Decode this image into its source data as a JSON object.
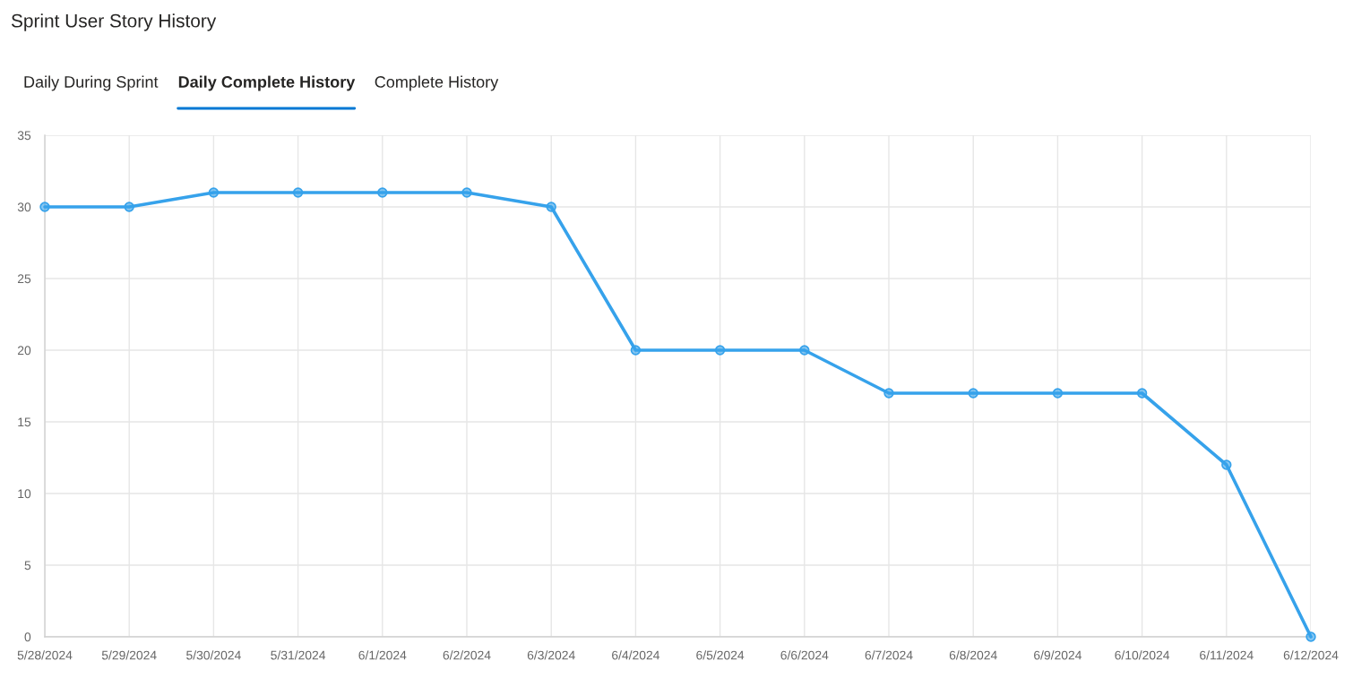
{
  "chart_data": {
    "type": "line",
    "title": "Sprint User Story History",
    "annotations": [
      "Daily During Sprint",
      "Daily Complete History",
      "Complete History"
    ],
    "categories": [
      "5/28/2024",
      "5/29/2024",
      "5/30/2024",
      "5/31/2024",
      "6/1/2024",
      "6/2/2024",
      "6/3/2024",
      "6/4/2024",
      "6/5/2024",
      "6/6/2024",
      "6/7/2024",
      "6/8/2024",
      "6/9/2024",
      "6/10/2024",
      "6/11/2024",
      "6/12/2024"
    ],
    "series": [
      {
        "color": "#36a2eb",
        "values": [
          30,
          30,
          31,
          31,
          31,
          31,
          30,
          20,
          20,
          20,
          17,
          17,
          17,
          17,
          12,
          0
        ]
      }
    ],
    "ylim": [
      0,
      35
    ],
    "yticks": [
      0,
      5,
      10,
      15,
      20,
      25,
      30,
      35
    ],
    "grid": true,
    "marker": "circle",
    "line_style": "solid"
  }
}
